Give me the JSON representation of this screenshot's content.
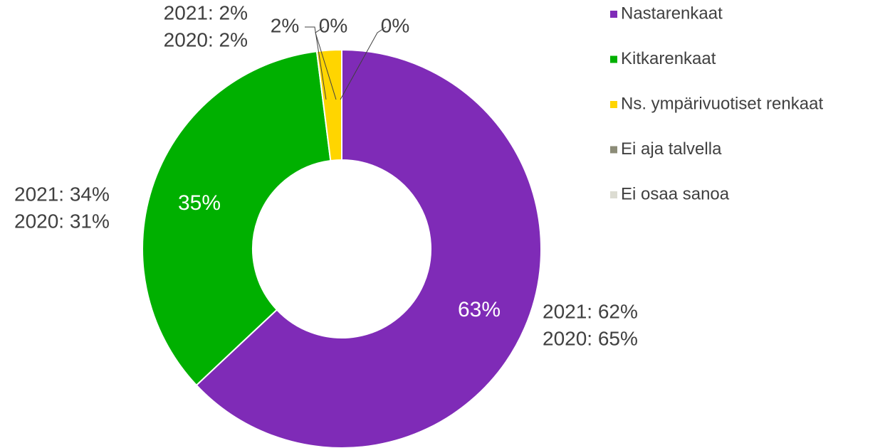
{
  "chart_data": {
    "type": "donut",
    "categories": [
      "Nastarenkaat",
      "Kitkarenkaat",
      "Ns. ympärivuotiset renkaat",
      "Ei aja talvella",
      "Ei osaa sanoa"
    ],
    "values": [
      63,
      35,
      2,
      0,
      0
    ],
    "value_labels": [
      "63%",
      "35%",
      "2%",
      "0%",
      "0%"
    ],
    "colors": [
      "#7f2bb7",
      "#00b000",
      "#ffd500",
      "#8c8c78",
      "#dcdcd2"
    ],
    "legend": "right",
    "annotations": [
      [
        "2021: 62%",
        "2020: 65%"
      ],
      [
        "2021: 34%",
        "2020: 31%"
      ],
      [
        "2021: 2%",
        "2020: 2%"
      ]
    ]
  }
}
